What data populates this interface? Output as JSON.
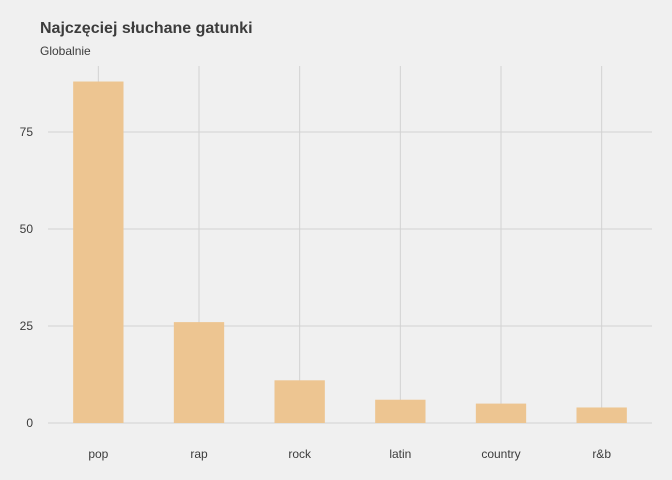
{
  "chart_data": {
    "type": "bar",
    "title": "Najczęciej słuchane gatunki",
    "subtitle": "Globalnie",
    "xlabel": "",
    "ylabel": "",
    "categories": [
      "pop",
      "rap",
      "rock",
      "latin",
      "country",
      "r&b"
    ],
    "values": [
      88,
      26,
      11,
      6,
      5,
      4
    ],
    "ylim": [
      0,
      92
    ],
    "yticks": [
      0,
      25,
      50,
      75
    ],
    "grid": true,
    "bar_color": "#edc591",
    "background": "#f0f0f0"
  }
}
